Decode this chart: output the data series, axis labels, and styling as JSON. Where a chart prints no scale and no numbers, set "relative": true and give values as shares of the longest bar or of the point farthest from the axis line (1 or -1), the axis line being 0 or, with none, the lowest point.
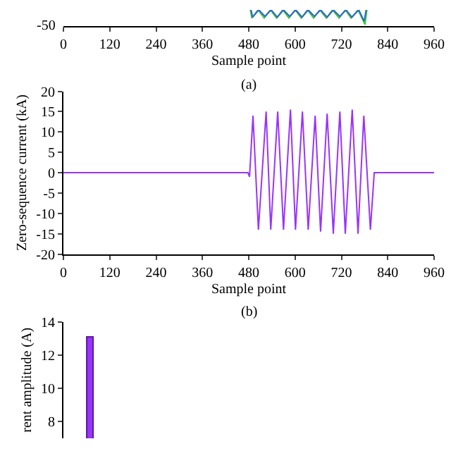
{
  "chart_data": [
    {
      "type": "line",
      "relative": true,
      "xlabel": "Sample point",
      "annotations": [
        "-50",
        "(a)"
      ],
      "xlim": [
        0,
        960
      ],
      "xticks": [
        0,
        120,
        240,
        360,
        480,
        600,
        720,
        840,
        960
      ],
      "marker": "none",
      "series": [
        {
          "color": "#33cc33",
          "x": [
            484,
            488,
            504,
            520,
            536,
            552,
            568,
            584,
            600,
            616,
            632,
            648,
            664,
            681,
            697,
            714,
            730,
            745,
            763,
            781,
            786
          ],
          "values": [
            1,
            0.5,
            1,
            0.5,
            1,
            0.5,
            1,
            0.5,
            1,
            0.5,
            1,
            0.5,
            1,
            0.5,
            1,
            0.5,
            1,
            0.5,
            1,
            0.1,
            1
          ]
        },
        {
          "color": "#3366cc",
          "x": [
            486,
            490,
            506,
            522,
            538,
            554,
            570,
            586,
            602,
            618,
            634,
            650,
            666,
            683,
            699,
            716,
            732,
            747,
            765,
            779,
            784
          ],
          "values": [
            1,
            0.55,
            1,
            0.6,
            1,
            0.55,
            1,
            0.6,
            1,
            0.55,
            1,
            0.6,
            1,
            0.55,
            1,
            0.6,
            1,
            0.55,
            1,
            0.3,
            1
          ]
        }
      ]
    },
    {
      "type": "line",
      "xlabel": "Sample point",
      "ylabel": "Zero-sequence current (kA)",
      "annotations": [
        "(b)"
      ],
      "xlim": [
        0,
        960
      ],
      "xticks": [
        0,
        120,
        240,
        360,
        480,
        600,
        720,
        840,
        960
      ],
      "ylim": [
        -20,
        20
      ],
      "yticks": [
        -20,
        -15,
        -10,
        -5,
        0,
        5,
        10,
        15,
        20
      ],
      "marker": "none",
      "series": [
        {
          "color": "#9933ff",
          "x": [
            0,
            478,
            482,
            491,
            505,
            525,
            537,
            555,
            570,
            588,
            601,
            619,
            634,
            652,
            666,
            683,
            699,
            716,
            730,
            748,
            763,
            778,
            795,
            805,
            960
          ],
          "values": [
            0,
            0,
            -1,
            14,
            -14,
            15,
            -14,
            15,
            -14,
            15.5,
            -14,
            15,
            -14,
            14,
            -14.5,
            14.5,
            -15,
            15,
            -15,
            15.5,
            -15,
            14,
            -14,
            0,
            0
          ]
        }
      ]
    },
    {
      "type": "bar",
      "ylabel": "rent amplitude (A)",
      "categories": [
        null
      ],
      "values": [
        13.1
      ],
      "color": "#9933ff",
      "ylim": [
        7,
        14
      ],
      "yticks": [
        8,
        10,
        12,
        14
      ],
      "tick_labels": "y"
    }
  ]
}
